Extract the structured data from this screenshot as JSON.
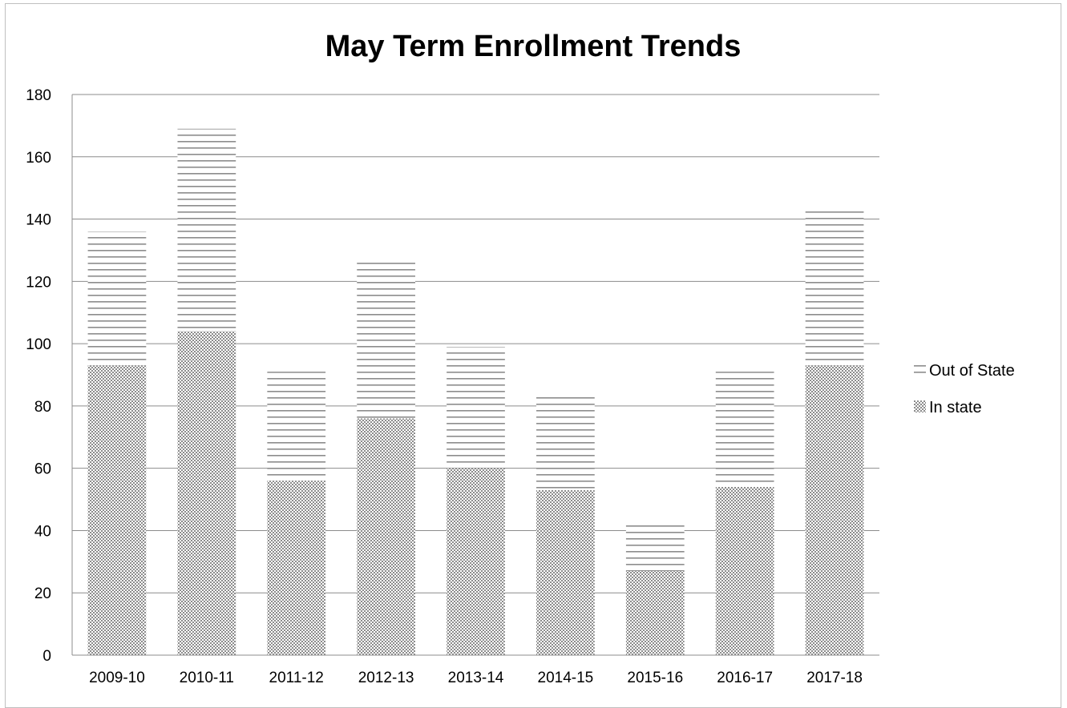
{
  "chart_data": {
    "type": "bar",
    "stacked": true,
    "title": "May Term Enrollment Trends",
    "xlabel": "",
    "ylabel": "",
    "ylim": [
      0,
      180
    ],
    "yticks": [
      0,
      20,
      40,
      60,
      80,
      100,
      120,
      140,
      160,
      180
    ],
    "grid": true,
    "legend_position": "right",
    "categories": [
      "2009-10",
      "2010-11",
      "2011-12",
      "2012-13",
      "2013-14",
      "2014-15",
      "2015-16",
      "2016-17",
      "2017-18"
    ],
    "series": [
      {
        "name": "In state",
        "pattern": "dotted-crosshatch",
        "color": "#808080",
        "values": [
          93,
          104,
          56,
          76,
          60,
          53,
          27,
          54,
          93
        ]
      },
      {
        "name": "Out of  State",
        "pattern": "horizontal-lines",
        "color": "#808080",
        "values": [
          43,
          65,
          35,
          50,
          39,
          30,
          15,
          37,
          50
        ]
      }
    ],
    "legend_order": [
      "Out of  State",
      "In state"
    ]
  }
}
